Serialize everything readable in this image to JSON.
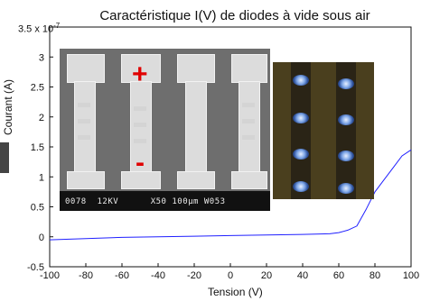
{
  "chart_data": {
    "type": "line",
    "title": "Caractéristique I(V) de diodes à vide sous air",
    "xlabel": "Tension  (V)",
    "ylabel": "Courant (A)",
    "y_scale_note": "3.5 x 10",
    "y_scale_exponent": "-7",
    "xlim": [
      -100,
      100
    ],
    "ylim": [
      -0.5,
      3.5
    ],
    "x_ticks": [
      -100,
      -80,
      -60,
      -40,
      -20,
      0,
      20,
      40,
      60,
      80,
      100
    ],
    "y_ticks": [
      -0.5,
      0,
      0.5,
      1,
      1.5,
      2,
      2.5,
      3
    ],
    "y_tick_labels": [
      "-0.5",
      "0",
      "0.5",
      "1",
      "1.5",
      "2",
      "2.5",
      "3"
    ],
    "grid": false,
    "series": [
      {
        "color": "#2020ff",
        "x": [
          -100,
          -80,
          -60,
          -40,
          -20,
          0,
          20,
          40,
          55,
          60,
          65,
          70,
          75,
          80,
          85,
          90,
          95,
          100
        ],
        "y": [
          -0.05,
          -0.03,
          -0.01,
          0.0,
          0.01,
          0.02,
          0.03,
          0.04,
          0.05,
          0.07,
          0.11,
          0.18,
          0.45,
          0.75,
          0.95,
          1.15,
          1.35,
          1.45
        ]
      }
    ]
  },
  "insets": {
    "sem_caption": "0078  12KV      X50 100µm W053",
    "plus_label": "+",
    "minus_label": "-"
  },
  "colors": {
    "line": "#2020ff",
    "marker": "#e00000"
  }
}
